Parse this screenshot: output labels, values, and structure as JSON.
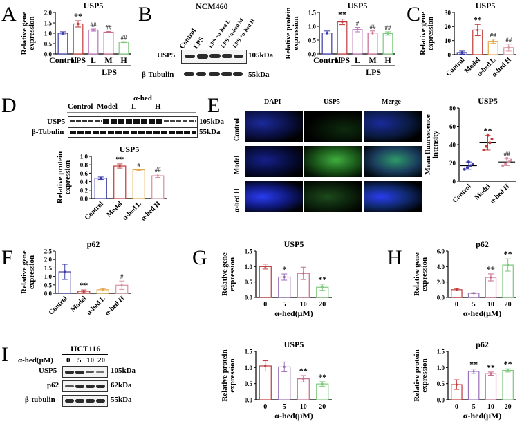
{
  "panels": {
    "A": {
      "label": "A"
    },
    "B": {
      "label": "B",
      "cell_line": "NCM460",
      "lanes": [
        "Control",
        "LPS",
        "LPS +α-hed L",
        "LPS +α-hed M",
        "LPS +α-hed H"
      ],
      "rows": [
        {
          "name": "USP5",
          "kda": "105kDa"
        },
        {
          "name": "β-Tubulin",
          "kda": "55kDa"
        }
      ]
    },
    "C": {
      "label": "C"
    },
    "D": {
      "label": "D",
      "group_header": "α-hed",
      "lanes": [
        "Control",
        "Model",
        "L",
        "H"
      ],
      "rows": [
        {
          "name": "USP5",
          "kda": "105kDa"
        },
        {
          "name": "β-Tubulin",
          "kda": "55kDa"
        }
      ]
    },
    "E": {
      "label": "E",
      "columns": [
        "DAPI",
        "USP5",
        "Merge"
      ],
      "rows": [
        "Control",
        "Model",
        "α-hed H"
      ]
    },
    "F": {
      "label": "F"
    },
    "G": {
      "label": "G"
    },
    "H": {
      "label": "H"
    },
    "I": {
      "label": "I",
      "cell_line": "HCT116",
      "dose_label": "α-hed(μM)",
      "doses": [
        "0",
        "5",
        "10",
        "20"
      ],
      "rows": [
        {
          "name": "USP5",
          "kda": "105kDa"
        },
        {
          "name": "p62",
          "kda": "62kDa"
        },
        {
          "name": "β-tubulin",
          "kda": "55kDa"
        }
      ]
    }
  },
  "chart_data": [
    {
      "id": "A",
      "type": "bar",
      "title": "USP5",
      "ylabel": "Relative gene expression",
      "xlabel": "",
      "ylim": [
        0,
        2.0
      ],
      "yticks": [
        "0.0",
        "0.5",
        "1.0",
        "1.5",
        "2.0"
      ],
      "categories": [
        "Control",
        "LPS",
        "L",
        "M",
        "H"
      ],
      "group_label": "LPS",
      "values": [
        1.0,
        1.45,
        1.15,
        1.05,
        0.57
      ],
      "errors": [
        0.07,
        0.15,
        0.05,
        0.03,
        0.02
      ],
      "annotations": [
        "",
        "**",
        "##",
        "##",
        "##"
      ],
      "colors": [
        "#3b3ba8",
        "#c0393b",
        "#b872b8",
        "#c76b8c",
        "#7ec97e"
      ]
    },
    {
      "id": "B",
      "type": "bar",
      "title": "USP5",
      "ylabel": "Relative protein expression",
      "xlabel": "",
      "ylim": [
        0,
        1.5
      ],
      "yticks": [
        "0.0",
        "0.5",
        "1.0",
        "1.5"
      ],
      "categories": [
        "Control",
        "LPS",
        "L",
        "M",
        "H"
      ],
      "group_label": "LPS",
      "values": [
        0.76,
        1.16,
        0.88,
        0.76,
        0.74
      ],
      "errors": [
        0.07,
        0.1,
        0.08,
        0.07,
        0.06
      ],
      "annotations": [
        "",
        "**",
        "#",
        "##",
        "##"
      ],
      "colors": [
        "#3b3ba8",
        "#c0393b",
        "#b872b8",
        "#c76b8c",
        "#7ec97e"
      ]
    },
    {
      "id": "C",
      "type": "bar",
      "title": "USP5",
      "ylabel": "Relative gene expression",
      "xlabel": "",
      "ylim": [
        0,
        30
      ],
      "yticks": [
        "0",
        "10",
        "20",
        "30"
      ],
      "categories": [
        "Control",
        "Model",
        "α-hed L",
        "α-hed H"
      ],
      "values": [
        1.5,
        17.5,
        9.5,
        5
      ],
      "errors": [
        1.0,
        4.0,
        1.5,
        2.5
      ],
      "annotations": [
        "",
        "**",
        "##",
        "##"
      ],
      "colors": [
        "#3b3ba8",
        "#c0393b",
        "#e2a84a",
        "#d890a0"
      ]
    },
    {
      "id": "D",
      "type": "bar",
      "title": "USP5",
      "ylabel": "Relative protein expression",
      "xlabel": "",
      "ylim": [
        0,
        1.0
      ],
      "yticks": [
        "0.0",
        "0.2",
        "0.4",
        "0.6",
        "0.8",
        "1.0"
      ],
      "categories": [
        "Control",
        "Model",
        "α-hed L",
        "α-hed H"
      ],
      "values": [
        0.48,
        0.77,
        0.68,
        0.54
      ],
      "errors": [
        0.03,
        0.05,
        0.01,
        0.04
      ],
      "annotations": [
        "",
        "**",
        "#",
        "##"
      ],
      "colors": [
        "#3b3ba8",
        "#c0393b",
        "#e2a84a",
        "#d890a0"
      ]
    },
    {
      "id": "E",
      "type": "scatter",
      "title": "USP5",
      "ylabel": "Mean fluorescence intensity",
      "xlabel": "",
      "ylim": [
        0,
        80
      ],
      "yticks": [
        "0",
        "20",
        "40",
        "60",
        "80"
      ],
      "categories": [
        "Control",
        "Model",
        "α-hed H"
      ],
      "values": [
        17,
        42,
        21
      ],
      "errors": [
        4,
        8,
        4
      ],
      "annotations": [
        "",
        "**",
        "##"
      ],
      "colors": [
        "#3b3ba8",
        "#c0393b",
        "#d890a0"
      ]
    },
    {
      "id": "F",
      "type": "bar",
      "title": "p62",
      "ylabel": "Relative gene expression",
      "xlabel": "",
      "ylim": [
        0,
        2.5
      ],
      "yticks": [
        "0.0",
        "0.5",
        "1.0",
        "1.5",
        "2.0",
        "2.5"
      ],
      "categories": [
        "Control",
        "Model",
        "α-hed L",
        "α-hed H"
      ],
      "values": [
        1.27,
        0.12,
        0.21,
        0.48
      ],
      "errors": [
        0.45,
        0.08,
        0.07,
        0.25
      ],
      "annotations": [
        "",
        "**",
        "",
        "#"
      ],
      "colors": [
        "#3b3ba8",
        "#c0393b",
        "#e2a84a",
        "#d890a0"
      ]
    },
    {
      "id": "G-top",
      "type": "bar",
      "title": "USP5",
      "ylabel": "Relative gene expression",
      "xlabel": "α-hed(μM)",
      "ylim": [
        0,
        1.5
      ],
      "yticks": [
        "0.0",
        "0.5",
        "1.0",
        "1.5"
      ],
      "categories": [
        "0",
        "5",
        "10",
        "20"
      ],
      "values": [
        1.0,
        0.66,
        0.78,
        0.33
      ],
      "errors": [
        0.08,
        0.1,
        0.2,
        0.1
      ],
      "annotations": [
        "",
        "*",
        "",
        "**"
      ],
      "colors": [
        "#c0393b",
        "#9a6fb8",
        "#c76b8c",
        "#7ec97e"
      ]
    },
    {
      "id": "H-top",
      "type": "bar",
      "title": "p62",
      "ylabel": "Relative gene expression",
      "xlabel": "α-hed(μM)",
      "ylim": [
        0,
        6.0
      ],
      "yticks": [
        "0.0",
        "2.0",
        "4.0",
        "6.0"
      ],
      "categories": [
        "0",
        "5",
        "10",
        "20"
      ],
      "values": [
        1.0,
        0.55,
        2.6,
        4.2
      ],
      "errors": [
        0.15,
        0.05,
        0.45,
        0.8
      ],
      "annotations": [
        "",
        "",
        "**",
        "**"
      ],
      "colors": [
        "#c0393b",
        "#9a6fb8",
        "#c76b8c",
        "#7ec97e"
      ]
    },
    {
      "id": "G-bottom",
      "type": "bar",
      "title": "USP5",
      "ylabel": "Relative protein expression",
      "xlabel": "α-hed(μM)",
      "ylim": [
        0,
        1.5
      ],
      "yticks": [
        "0.0",
        "0.5",
        "1.0",
        "1.5"
      ],
      "categories": [
        "0",
        "5",
        "10",
        "20"
      ],
      "values": [
        1.05,
        1.02,
        0.65,
        0.49
      ],
      "errors": [
        0.16,
        0.15,
        0.1,
        0.07
      ],
      "annotations": [
        "",
        "",
        "**",
        "**"
      ],
      "colors": [
        "#c0393b",
        "#9a6fb8",
        "#c76b8c",
        "#7ec97e"
      ]
    },
    {
      "id": "H-bottom",
      "type": "bar",
      "title": "p62",
      "ylabel": "Relative protein expression",
      "xlabel": "α-hed(μM)",
      "ylim": [
        0,
        1.5
      ],
      "yticks": [
        "0.0",
        "0.5",
        "1.0",
        "1.5"
      ],
      "categories": [
        "0",
        "5",
        "10",
        "20"
      ],
      "values": [
        0.47,
        0.88,
        0.81,
        0.91
      ],
      "errors": [
        0.15,
        0.07,
        0.05,
        0.05
      ],
      "annotations": [
        "",
        "**",
        "**",
        "**"
      ],
      "colors": [
        "#c0393b",
        "#9a6fb8",
        "#c76b8c",
        "#7ec97e"
      ]
    }
  ]
}
